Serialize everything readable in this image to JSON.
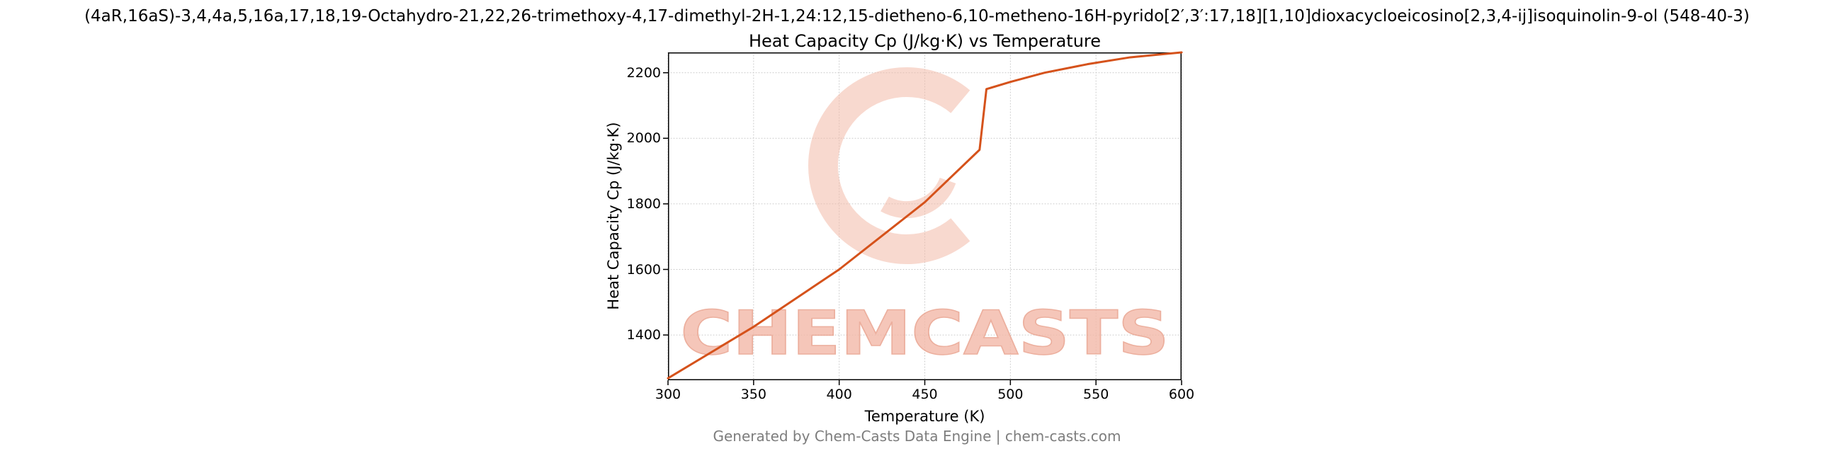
{
  "page": {
    "supertitle": "(4aR,16aS)-3,4,4a,5,16a,17,18,19-Octahydro-21,22,26-trimethoxy-4,17-dimethyl-2H-1,24:12,15-dietheno-6,10-metheno-16H-pyrido[2′,3′:17,18][1,10]dioxacycloeicosino[2,3,4-ij]isoquinolin-9-ol (548-40-3)",
    "watermark_text": "CHEMCASTS",
    "footer": "Generated by Chem-Casts Data Engine | chem-casts.com"
  },
  "chart_data": {
    "type": "line",
    "title": "Heat Capacity Cp (J/kg·K) vs Temperature",
    "xlabel": "Temperature (K)",
    "ylabel": "Heat Capacity Cp (J/kg·K)",
    "xlim": [
      300,
      600
    ],
    "ylim": [
      1262,
      2262
    ],
    "x_ticks": [
      300,
      350,
      400,
      450,
      500,
      550,
      600
    ],
    "y_ticks": [
      1400,
      1600,
      1800,
      2000,
      2200
    ],
    "grid": "dotted",
    "legend": "none",
    "line_color": "#d5521b",
    "grid_color": "#c9c9c9",
    "watermark_color": "#f3b9a8",
    "series": [
      {
        "name": "Heat Capacity Cp",
        "points": [
          [
            300,
            1268
          ],
          [
            350,
            1425
          ],
          [
            400,
            1600
          ],
          [
            450,
            1805
          ],
          [
            482,
            1965
          ],
          [
            486,
            2150
          ],
          [
            500,
            2172
          ],
          [
            520,
            2200
          ],
          [
            545,
            2226
          ],
          [
            570,
            2247
          ],
          [
            600,
            2262
          ]
        ]
      }
    ]
  }
}
